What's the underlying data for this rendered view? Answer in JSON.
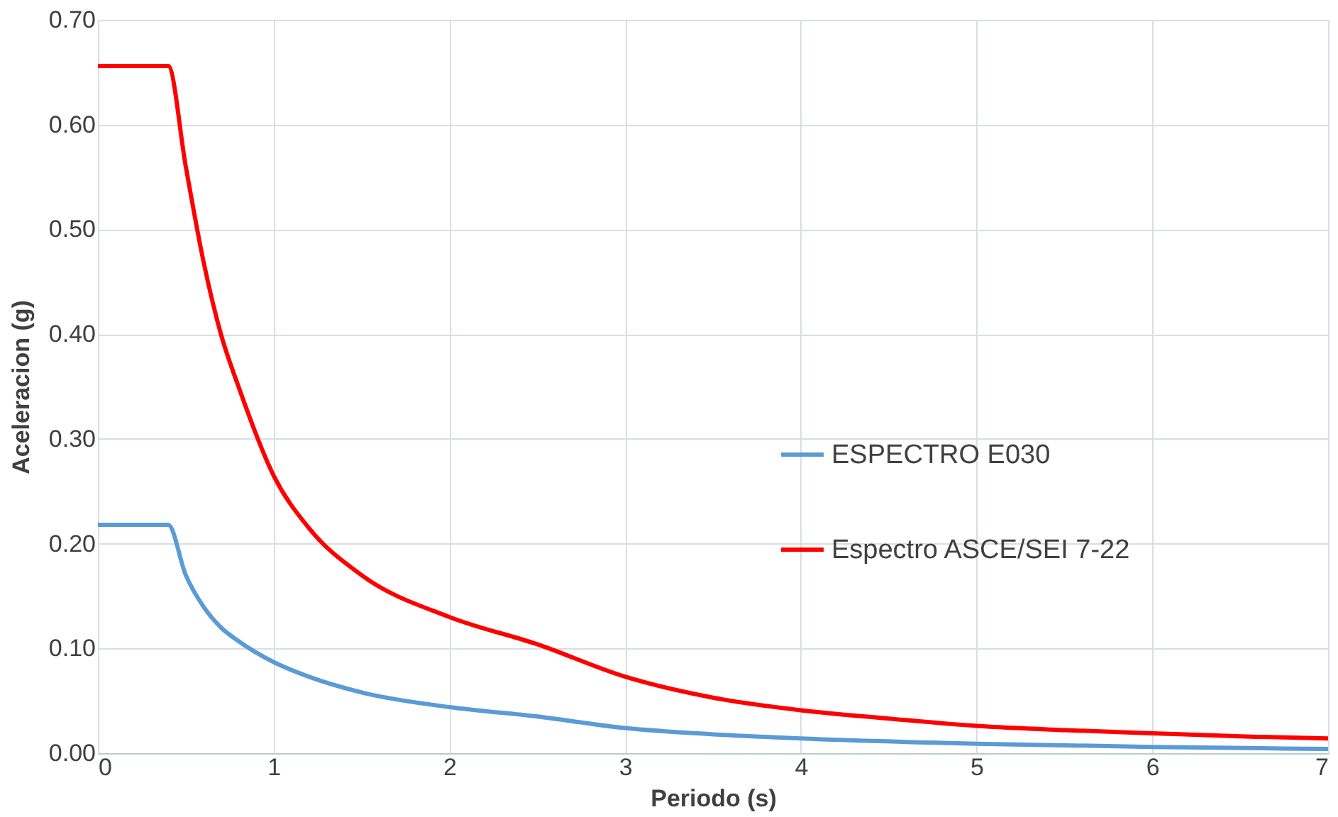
{
  "chart_data": {
    "type": "line",
    "xlabel": "Periodo (s)",
    "ylabel": "Aceleracion (g)",
    "xlim": [
      0,
      7
    ],
    "xticks": [
      0,
      1,
      2,
      3,
      4,
      5,
      6,
      7
    ],
    "ylim": [
      0,
      0.7
    ],
    "yticks": [
      {
        "value": 0,
        "label": "0.00"
      },
      {
        "value": 0.1,
        "label": "0.10"
      },
      {
        "value": 0.2,
        "label": "0.20"
      },
      {
        "value": 0.3,
        "label": "0.30"
      },
      {
        "value": 0.4,
        "label": "0.40"
      },
      {
        "value": 0.5,
        "label": "0.50"
      },
      {
        "value": 0.6,
        "label": "0.60"
      },
      {
        "value": 0.7,
        "label": "0.70"
      }
    ],
    "grid": true,
    "legend": "right",
    "marker": "none",
    "line_style": "solid",
    "series": [
      {
        "name": "ESPECTRO E030",
        "color": "#5b9bd5",
        "x": [
          0,
          0.4,
          0.5,
          0.6,
          0.7,
          0.8,
          1,
          1.2,
          1.5,
          2,
          2.5,
          3,
          3.5,
          4,
          5,
          6,
          7
        ],
        "values": [
          0.218,
          0.218,
          0.17,
          0.14,
          0.12,
          0.107,
          0.087,
          0.073,
          0.058,
          0.044,
          0.035,
          0.024,
          0.018,
          0.014,
          0.009,
          0.006,
          0.004
        ]
      },
      {
        "name": "Espectro ASCE/SEI 7-22",
        "color": "#ff0000",
        "x": [
          0,
          0.4,
          0.5,
          0.6,
          0.7,
          0.8,
          1,
          1.2,
          1.5,
          2,
          2.5,
          3,
          3.5,
          4,
          4.5,
          5,
          5.5,
          6,
          6.5,
          7
        ],
        "values": [
          0.656,
          0.656,
          0.56,
          0.47,
          0.4,
          0.35,
          0.265,
          0.215,
          0.17,
          0.13,
          0.104,
          0.073,
          0.053,
          0.041,
          0.033,
          0.026,
          0.022,
          0.019,
          0.016,
          0.014
        ]
      }
    ]
  }
}
